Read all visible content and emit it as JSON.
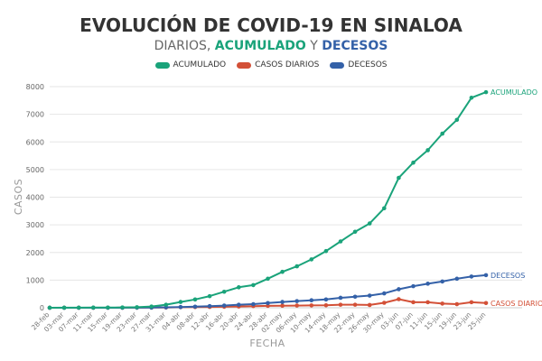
{
  "title": "EVOLUCIÓN DE COVID-19 EN SINALOA",
  "subtitle": {
    "prefix": "DIARIOS, ",
    "acumulado": "ACUMULADO",
    "middle": " Y ",
    "decesos": "DECESOS"
  },
  "colors": {
    "acumulado": "#1aa37a",
    "casos_diarios": "#d35037",
    "decesos": "#3461a8",
    "grid": "#e6e6e6"
  },
  "chart_data": {
    "type": "line",
    "title": "EVOLUCIÓN DE COVID-19 EN SINALOA",
    "xlabel": "FECHA",
    "ylabel": "CASOS",
    "ylim": [
      0,
      8000
    ],
    "yticks": [
      0,
      1000,
      2000,
      3000,
      4000,
      5000,
      6000,
      7000,
      8000
    ],
    "grid": true,
    "legend_position": "top-center",
    "x": [
      "28-feb",
      "03-mar",
      "07-mar",
      "11-mar",
      "15-mar",
      "19-mar",
      "23-mar",
      "27-mar",
      "31-mar",
      "04-abr",
      "08-abr",
      "12-abr",
      "16-abr",
      "20-abr",
      "24-abr",
      "28-abr",
      "02-may",
      "06-may",
      "10-may",
      "14-may",
      "18-may",
      "22-may",
      "26-may",
      "30-may",
      "03-jun",
      "07-jun",
      "11-jun",
      "15-jun",
      "19-jun",
      "23-jun",
      "25-jun"
    ],
    "series": [
      {
        "name": "ACUMULADO",
        "end_label": "ACUMULADO",
        "values": [
          1,
          2,
          3,
          5,
          8,
          12,
          20,
          45,
          110,
          210,
          300,
          420,
          580,
          740,
          820,
          1050,
          1300,
          1500,
          1750,
          2050,
          2400,
          2750,
          3050,
          3600,
          4700,
          5250,
          5700,
          6300,
          6800,
          7600,
          7800
        ]
      },
      {
        "name": "CASOS DIARIOS",
        "end_label": "CASOS DIARIOS",
        "values": [
          1,
          1,
          1,
          1,
          1,
          2,
          3,
          5,
          10,
          20,
          25,
          30,
          35,
          45,
          60,
          70,
          75,
          80,
          85,
          90,
          110,
          110,
          100,
          180,
          310,
          200,
          200,
          150,
          130,
          200,
          170
        ]
      },
      {
        "name": "DECESOS",
        "end_label": "DECESOS",
        "values": [
          0,
          0,
          0,
          1,
          1,
          2,
          3,
          6,
          15,
          25,
          40,
          60,
          80,
          110,
          130,
          170,
          210,
          240,
          270,
          300,
          360,
          400,
          440,
          520,
          670,
          780,
          870,
          950,
          1050,
          1130,
          1180
        ]
      }
    ]
  }
}
